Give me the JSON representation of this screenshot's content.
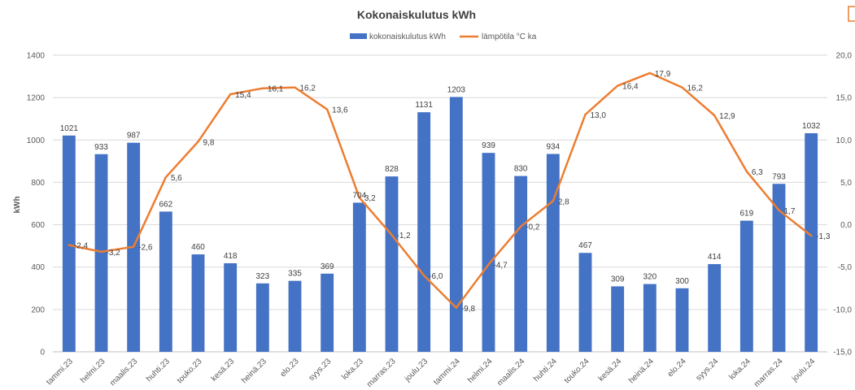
{
  "chart_data": {
    "type": "bar+line",
    "title": "Kokonaiskulutus kWh",
    "ylabel": "kWh",
    "ylabel_right": "",
    "categories": [
      "tammi.23",
      "helmi.23",
      "maalis.23",
      "huhti.23",
      "touko.23",
      "kesä.23",
      "heinä.23",
      "elo.23",
      "syys.23",
      "loka.23",
      "marras.23",
      "joulu.23",
      "tammi.24",
      "helmi.24",
      "maalis.24",
      "huhti.24",
      "touko.24",
      "kesä.24",
      "heinä.24",
      "elo.24",
      "syys.24",
      "loka.24",
      "marras.24",
      "joulu.24"
    ],
    "series": [
      {
        "name": "kokonaiskulutus kWh",
        "type": "bar",
        "axis": "left",
        "color": "#4472C4",
        "values": [
          1021,
          933,
          987,
          662,
          460,
          418,
          323,
          335,
          369,
          704,
          828,
          1131,
          1203,
          939,
          830,
          934,
          467,
          309,
          320,
          300,
          414,
          619,
          793,
          1032
        ]
      },
      {
        "name": "lämpötila °C ka",
        "type": "line",
        "axis": "right",
        "color": "#ED7D31",
        "values": [
          -2.4,
          -3.2,
          -2.6,
          5.6,
          9.8,
          15.4,
          16.1,
          16.2,
          13.6,
          3.2,
          -1.2,
          -6.0,
          -9.8,
          -4.7,
          -0.2,
          2.8,
          13.0,
          16.4,
          17.9,
          16.2,
          12.9,
          6.3,
          1.7,
          -1.3
        ],
        "labels": [
          "-2,4",
          "-3,2",
          "-2,6",
          "5,6",
          "9,8",
          "15,4",
          "16,1",
          "16,2",
          "13,6",
          "3,2",
          "-1,2",
          "-6,0",
          "-9,8",
          "-4,7",
          "-0,2",
          "2,8",
          "13,0",
          "16,4",
          "17,9",
          "16,2",
          "12,9",
          "6,3",
          "1,7",
          "-1,3"
        ]
      }
    ],
    "ylim": [
      0,
      1400
    ],
    "yticks": [
      "0",
      "200",
      "400",
      "600",
      "800",
      "1000",
      "1200",
      "1400"
    ],
    "y2lim": [
      -15,
      20
    ],
    "y2ticks": [
      "-15,0",
      "-10,0",
      "-5,0",
      "0,0",
      "5,0",
      "10,0",
      "15,0",
      "20,0"
    ],
    "grid": true,
    "legend": "top-center"
  }
}
